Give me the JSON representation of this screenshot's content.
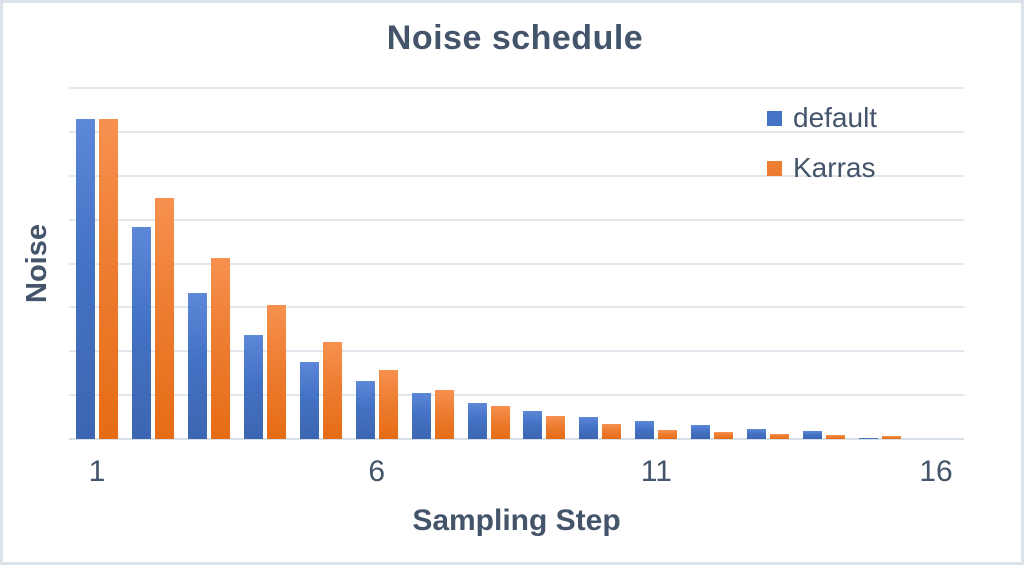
{
  "chart_data": {
    "type": "bar",
    "title": "Noise schedule",
    "xlabel": "Sampling Step",
    "ylabel": "Noise",
    "categories": [
      1,
      2,
      3,
      4,
      5,
      6,
      7,
      8,
      9,
      10,
      11,
      12,
      13,
      14,
      15,
      16
    ],
    "x_tick_labels_shown": [
      {
        "step": 1,
        "label": "1"
      },
      {
        "step": 6,
        "label": "6"
      },
      {
        "step": 11,
        "label": "11"
      },
      {
        "step": 16,
        "label": "16"
      }
    ],
    "series": [
      {
        "name": "default",
        "color": "#4472C4",
        "values": [
          7.29,
          4.83,
          3.33,
          2.37,
          1.75,
          1.32,
          1.05,
          0.82,
          0.64,
          0.5,
          0.41,
          0.32,
          0.23,
          0.18,
          0.03,
          0
        ]
      },
      {
        "name": "Karras",
        "color": "#ED7D31",
        "values": [
          7.29,
          5.49,
          4.12,
          3.05,
          2.21,
          1.57,
          1.12,
          0.75,
          0.52,
          0.34,
          0.21,
          0.16,
          0.11,
          0.09,
          0.06,
          0
        ]
      }
    ],
    "ylim": [
      0,
      8
    ],
    "y_gridline_interval": 1,
    "y_tick_labels_shown": false,
    "grid": true,
    "legend_position": "top-right"
  },
  "style": {
    "title_color": "#44546A",
    "axis_text_color": "#44546A",
    "gridline_color": "#E2E7EE",
    "axis_line_color": "#D9DFE7",
    "background_color": "#FFFFFF",
    "border_color": "#DDE3EB"
  }
}
